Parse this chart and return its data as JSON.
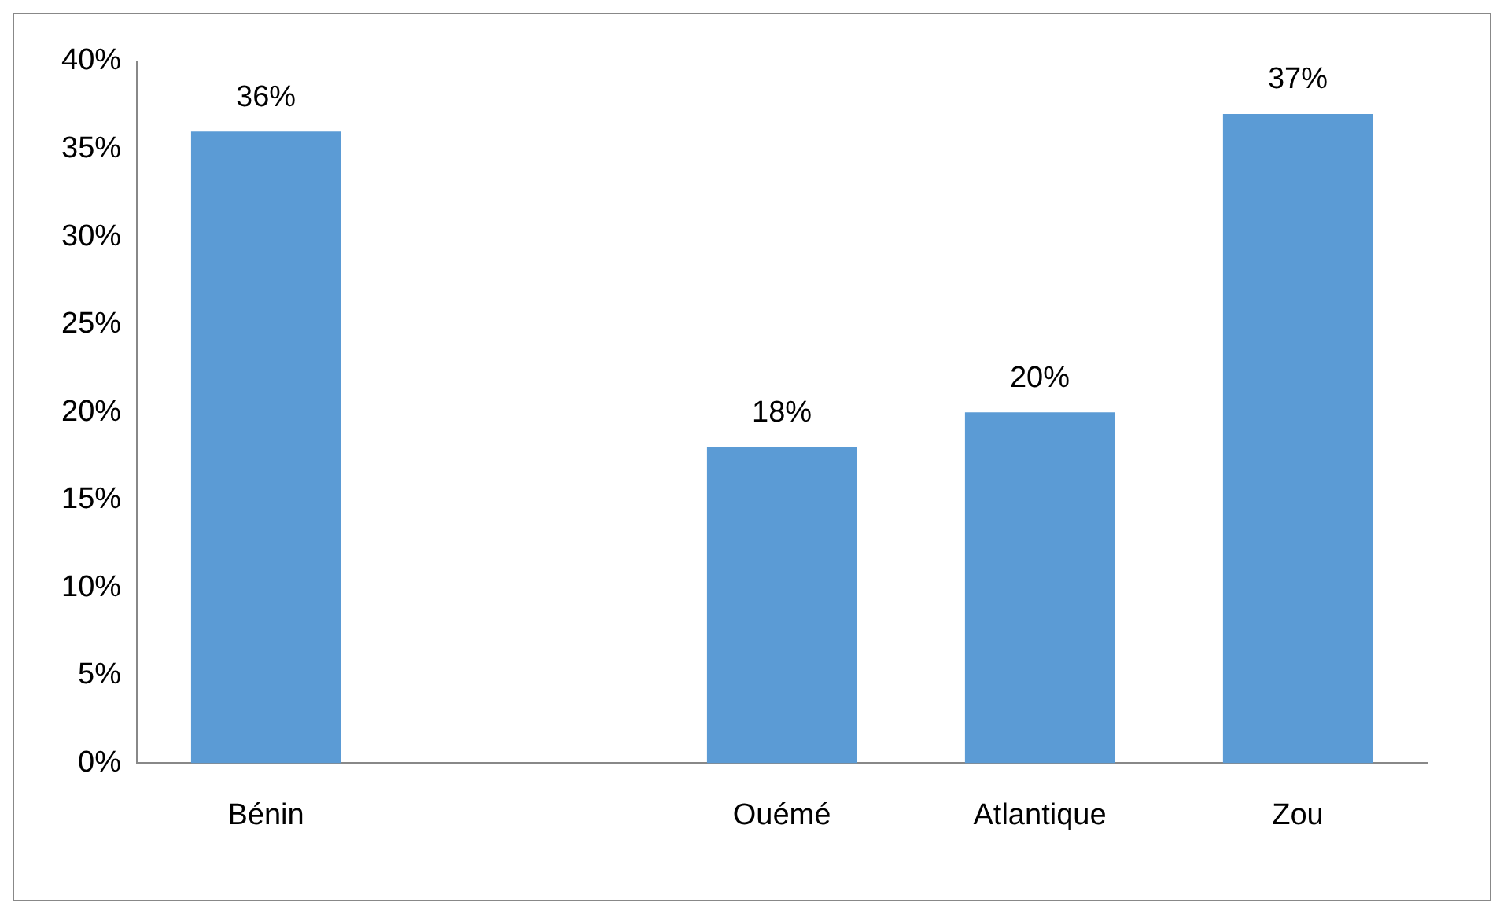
{
  "chart_data": {
    "type": "bar",
    "categories": [
      "Bénin",
      null,
      "Ouémé",
      "Atlantique",
      "Zou"
    ],
    "values": [
      36,
      null,
      18,
      20,
      37
    ],
    "value_labels": [
      "36%",
      null,
      "18%",
      "20%",
      "37%"
    ],
    "color": "#5b9bd5",
    "ylim": [
      0,
      40
    ],
    "yticks": [
      {
        "value": 0,
        "label": "0%"
      },
      {
        "value": 5,
        "label": "5%"
      },
      {
        "value": 10,
        "label": "10%"
      },
      {
        "value": 15,
        "label": "15%"
      },
      {
        "value": 20,
        "label": "20%"
      },
      {
        "value": 25,
        "label": "25%"
      },
      {
        "value": 30,
        "label": "30%"
      },
      {
        "value": 35,
        "label": "35%"
      },
      {
        "value": 40,
        "label": "40%"
      }
    ],
    "grid": false,
    "legend": false
  }
}
